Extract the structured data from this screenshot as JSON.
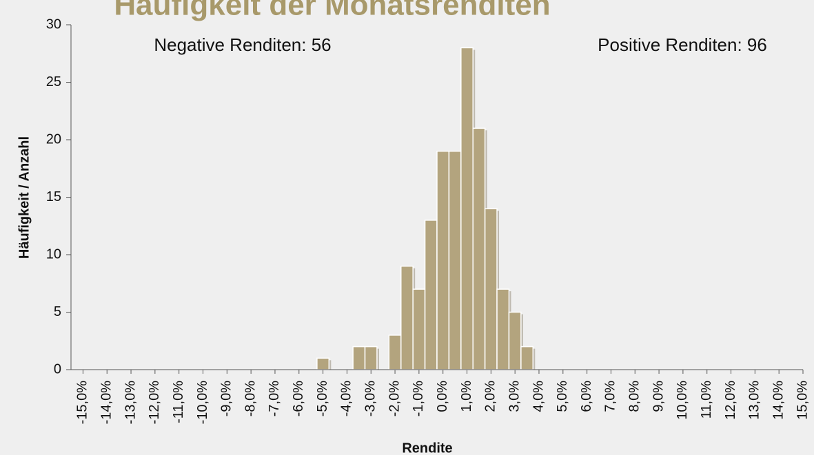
{
  "chart_data": {
    "type": "histogram",
    "title": "Häufigkeit der Monatsrenditen",
    "x_label": "Rendite",
    "y_label": "Häufigkeit / Anzahl",
    "annotations": [
      "Negative Renditen: 56",
      "Positive Renditen: 96"
    ],
    "bins": [
      -5.25,
      -4.75,
      -4.25,
      -3.75,
      -3.25,
      -2.75,
      -2.25,
      -1.75,
      -1.25,
      -0.75,
      -0.25,
      0.25,
      0.75,
      1.25,
      1.75,
      2.25,
      2.75,
      3.25,
      3.75
    ],
    "counts": [
      1,
      0,
      0,
      2,
      2,
      0,
      3,
      9,
      7,
      13,
      19,
      19,
      28,
      21,
      14,
      7,
      5,
      2
    ],
    "color": "#b3a47e",
    "title_color": "#a8996a",
    "xlim": [
      -15.5,
      15
    ],
    "ylim": [
      0,
      30
    ],
    "yticks": [
      0,
      5,
      10,
      15,
      20,
      25,
      30
    ],
    "xticks": [
      {
        "value": -15,
        "label": "-15,0%"
      },
      {
        "value": -14,
        "label": "-14,0%"
      },
      {
        "value": -13,
        "label": "-13,0%"
      },
      {
        "value": -12,
        "label": "-12,0%"
      },
      {
        "value": -11,
        "label": "-11,0%"
      },
      {
        "value": -10,
        "label": "-10,0%"
      },
      {
        "value": -9,
        "label": "-9,0%"
      },
      {
        "value": -8,
        "label": "-8,0%"
      },
      {
        "value": -7,
        "label": "-7,0%"
      },
      {
        "value": -6,
        "label": "-6,0%"
      },
      {
        "value": -5,
        "label": "-5,0%"
      },
      {
        "value": -4,
        "label": "-4,0%"
      },
      {
        "value": -3,
        "label": "-3,0%"
      },
      {
        "value": -2,
        "label": "-2,0%"
      },
      {
        "value": -1,
        "label": "-1,0%"
      },
      {
        "value": 0,
        "label": "0,0%"
      },
      {
        "value": 1,
        "label": "1,0%"
      },
      {
        "value": 2,
        "label": "2,0%"
      },
      {
        "value": 3,
        "label": "3,0%"
      },
      {
        "value": 4,
        "label": "4,0%"
      },
      {
        "value": 5,
        "label": "5,0%"
      },
      {
        "value": 6,
        "label": "6,0%"
      },
      {
        "value": 7,
        "label": "7,0%"
      },
      {
        "value": 8,
        "label": "8,0%"
      },
      {
        "value": 9,
        "label": "9,0%"
      },
      {
        "value": 10,
        "label": "10,0%"
      },
      {
        "value": 11,
        "label": "11,0%"
      },
      {
        "value": 12,
        "label": "12,0%"
      },
      {
        "value": 13,
        "label": "13,0%"
      },
      {
        "value": 14,
        "label": "14,0%"
      },
      {
        "value": 15,
        "label": "15,0%"
      }
    ]
  }
}
